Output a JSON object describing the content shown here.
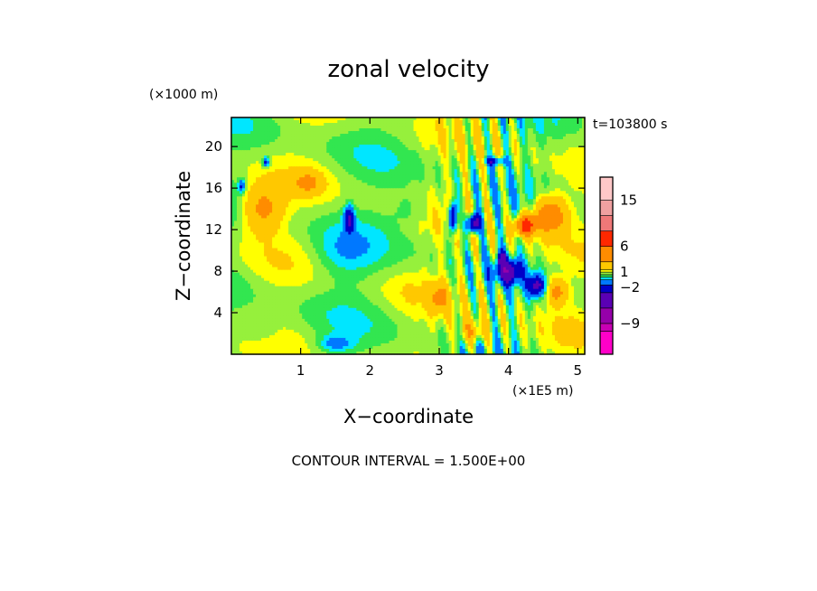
{
  "chart_data": {
    "type": "heatmap",
    "title": "zonal velocity",
    "xlabel": "X−coordinate",
    "ylabel": "Z−coordinate",
    "x_unit": "(×1E5 m)",
    "y_unit": "(×1000 m)",
    "time_label": "t=103800 s",
    "footer": "CONTOUR INTERVAL = 1.500E+00",
    "xlim": [
      0,
      5.1
    ],
    "ylim": [
      0,
      22.8
    ],
    "x_ticks": [
      1,
      2,
      3,
      4,
      5
    ],
    "x_tick_labels": [
      "1",
      "2",
      "3",
      "4",
      "5"
    ],
    "y_ticks": [
      4,
      8,
      12,
      16,
      20
    ],
    "y_tick_labels": [
      "4",
      "8",
      "12",
      "16",
      "20"
    ],
    "contour_interval": 1.5,
    "value_range": [
      -15,
      19.5
    ],
    "colorbar": {
      "label_values": [
        15,
        6,
        1,
        -2,
        -9
      ],
      "labels": [
        "15",
        "6",
        "1",
        "−2",
        "−9"
      ],
      "levels": [
        {
          "min": -15,
          "max": -10.5,
          "color": "#ff00c8"
        },
        {
          "min": -10.5,
          "max": -9,
          "color": "#c800b4"
        },
        {
          "min": -9,
          "max": -6,
          "color": "#9600aa"
        },
        {
          "min": -6,
          "max": -3,
          "color": "#5a00b4"
        },
        {
          "min": -3,
          "max": -1.5,
          "color": "#0000c8"
        },
        {
          "min": -1.5,
          "max": -0.5,
          "color": "#0078ff"
        },
        {
          "min": -0.5,
          "max": 0,
          "color": "#00e6ff"
        },
        {
          "min": 0,
          "max": 0.5,
          "color": "#32e650"
        },
        {
          "min": 0.5,
          "max": 1,
          "color": "#96f03c"
        },
        {
          "min": 1,
          "max": 1.5,
          "color": "#ffff00"
        },
        {
          "min": 1.5,
          "max": 3,
          "color": "#ffc800"
        },
        {
          "min": 3,
          "max": 6,
          "color": "#ff8c00"
        },
        {
          "min": 6,
          "max": 9,
          "color": "#ff2800"
        },
        {
          "min": 9,
          "max": 12,
          "color": "#f07878"
        },
        {
          "min": 12,
          "max": 15,
          "color": "#f0a0a0"
        },
        {
          "min": 15,
          "max": 19.5,
          "color": "#ffc8c8"
        }
      ]
    },
    "features": [
      {
        "x": 3.5,
        "z": 12.6,
        "value": -5.5,
        "sx": 0.1,
        "sz": 0.9
      },
      {
        "x": 3.2,
        "z": 13.2,
        "value": -4.8,
        "sx": 0.06,
        "sz": 1.5
      },
      {
        "x": 4.0,
        "z": 8.0,
        "value": -5.0,
        "sx": 0.18,
        "sz": 1.1
      },
      {
        "x": 4.4,
        "z": 6.6,
        "value": -4.0,
        "sx": 0.12,
        "sz": 1.0
      },
      {
        "x": 3.9,
        "z": 9.2,
        "value": -3.2,
        "sx": 0.06,
        "sz": 0.8
      },
      {
        "x": 1.7,
        "z": 13.0,
        "value": -3.8,
        "sx": 0.07,
        "sz": 1.2
      },
      {
        "x": 0.5,
        "z": 18.5,
        "value": -2.8,
        "sx": 0.05,
        "sz": 0.5
      },
      {
        "x": 0.15,
        "z": 16.2,
        "value": -2.5,
        "sx": 0.05,
        "sz": 0.6
      },
      {
        "x": 3.8,
        "z": 18.6,
        "value": -3.0,
        "sx": 0.15,
        "sz": 0.4
      },
      {
        "x": 4.25,
        "z": 12.4,
        "value": 7.0,
        "sx": 0.14,
        "sz": 0.9
      },
      {
        "x": 4.6,
        "z": 13.4,
        "value": 4.0,
        "sx": 0.25,
        "sz": 1.8
      },
      {
        "x": 0.45,
        "z": 14.0,
        "value": 3.0,
        "sx": 0.28,
        "sz": 2.2
      },
      {
        "x": 3.0,
        "z": 5.5,
        "value": 2.5,
        "sx": 0.12,
        "sz": 1.3
      },
      {
        "x": 1.1,
        "z": 16.5,
        "value": 2.4,
        "sx": 0.2,
        "sz": 1.0
      },
      {
        "x": 3.5,
        "z": 2.2,
        "value": 2.2,
        "sx": 0.2,
        "sz": 1.2
      },
      {
        "x": 4.7,
        "z": 6.0,
        "value": 3.0,
        "sx": 0.15,
        "sz": 1.2
      },
      {
        "x": 1.6,
        "z": 9.5,
        "value": -0.9,
        "sx": 0.45,
        "sz": 2.4
      },
      {
        "x": 1.5,
        "z": 1.0,
        "value": -1.4,
        "sx": 0.25,
        "sz": 0.8
      },
      {
        "x": 2.6,
        "z": 14.0,
        "value": -0.8,
        "sx": 0.3,
        "sz": 1.6
      },
      {
        "x": 0.4,
        "z": 2.0,
        "value": -0.7,
        "sx": 0.35,
        "sz": 1.2
      },
      {
        "x": 2.5,
        "z": 6.0,
        "value": 0.2,
        "sx": 0.35,
        "sz": 1.5
      },
      {
        "x": 4.9,
        "z": 2.5,
        "value": 0.3,
        "sx": 0.3,
        "sz": 1.8
      }
    ]
  }
}
